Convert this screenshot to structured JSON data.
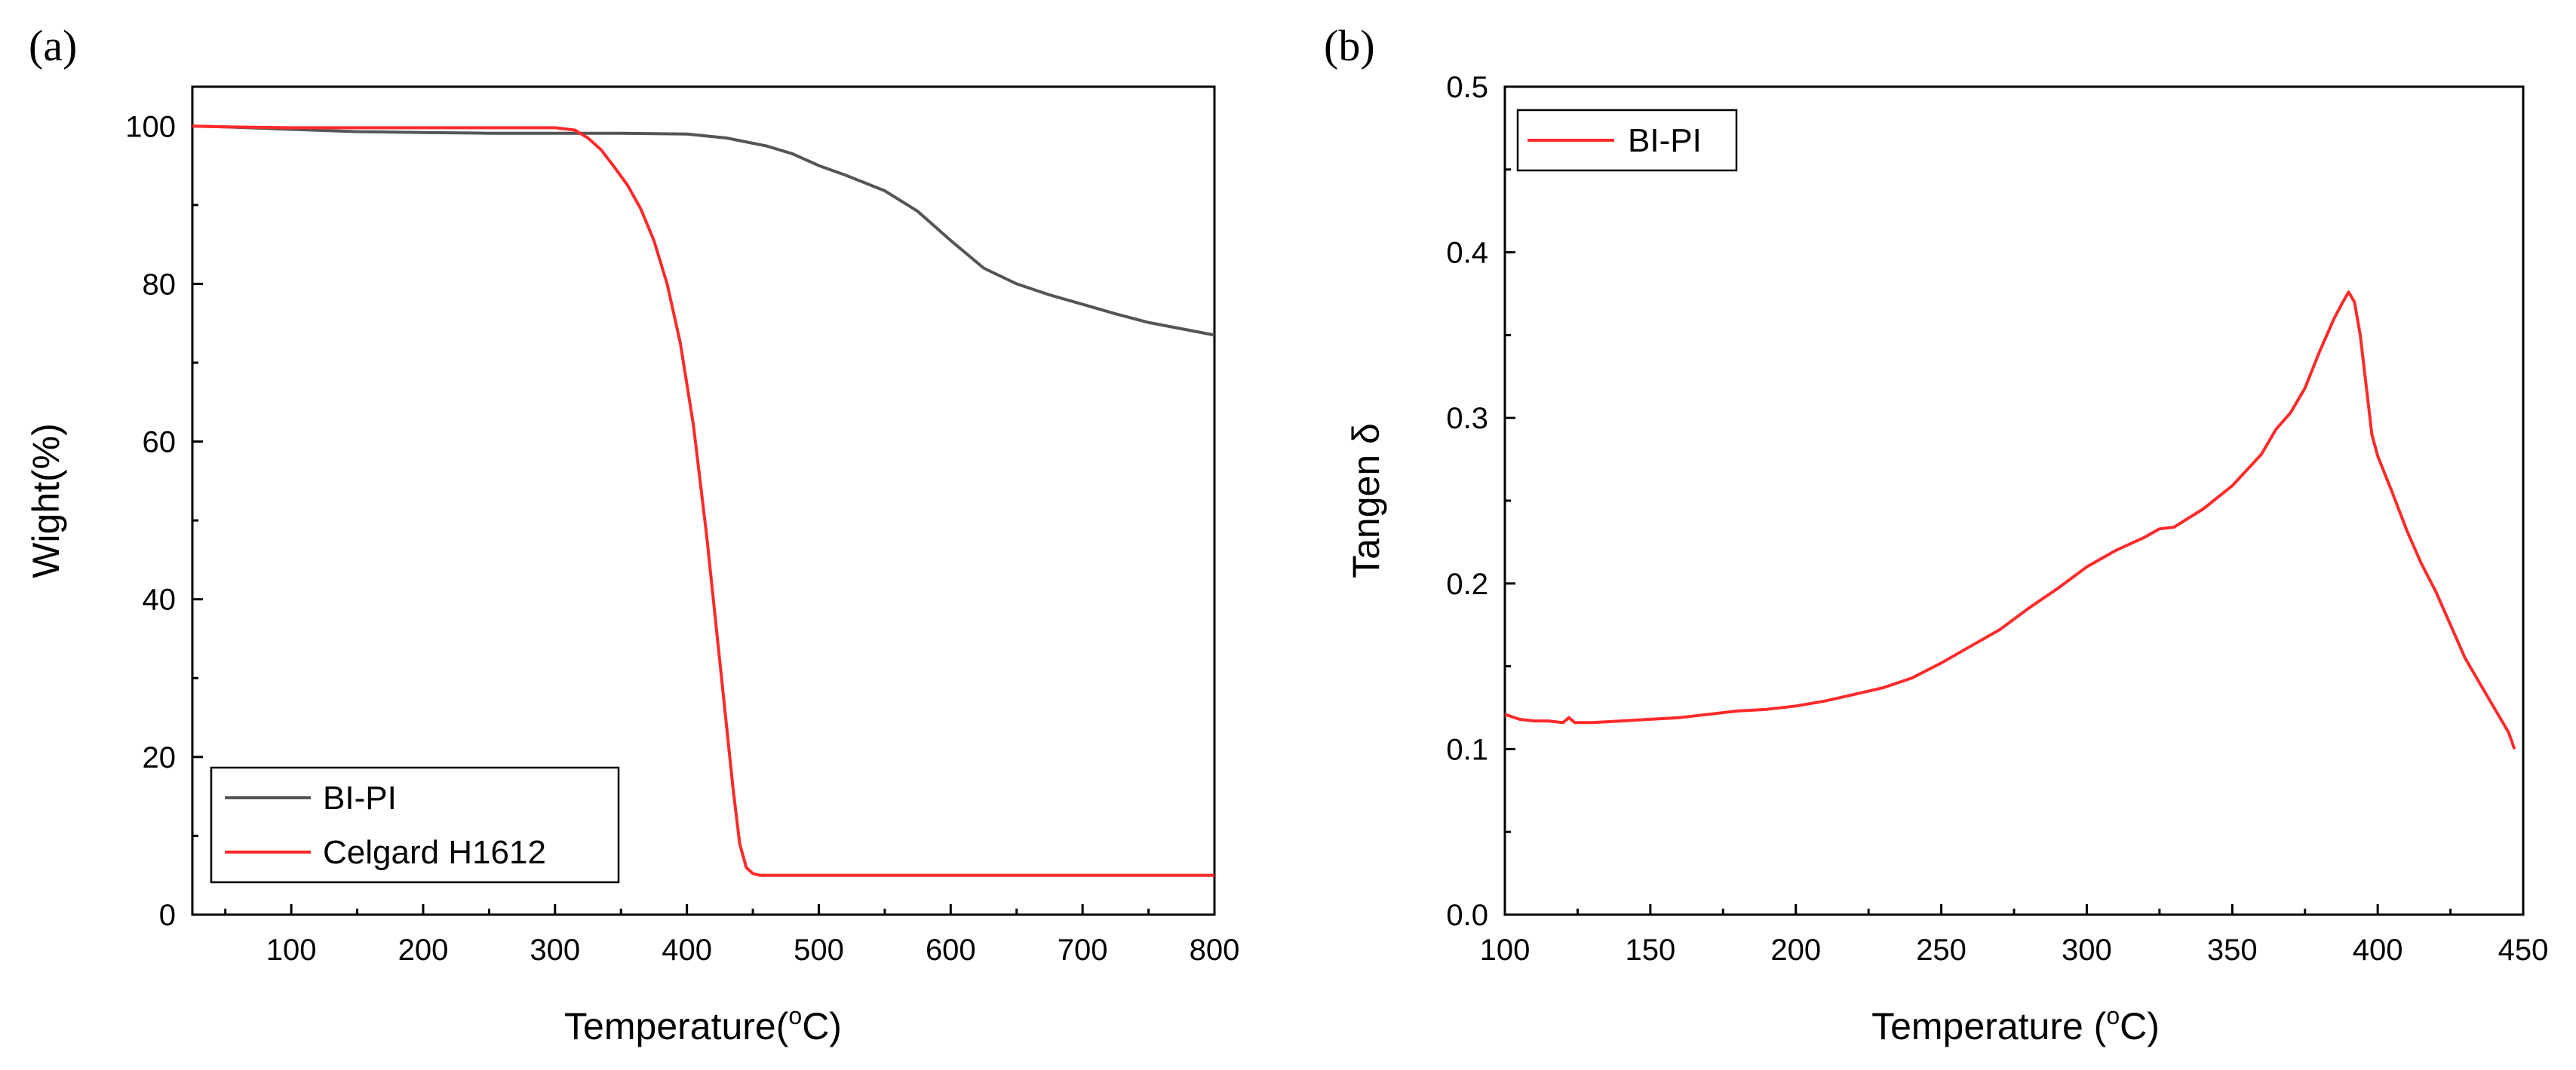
{
  "chart_data": [
    {
      "type": "line",
      "panel_label": "(a)",
      "title": "",
      "xlabel_main": "Temperature(",
      "xlabel_sup": "o",
      "xlabel_end": "C)",
      "ylabel": "Wight(%)",
      "xlim": [
        25,
        800
      ],
      "ylim": [
        0,
        105
      ],
      "xticks": [
        100,
        200,
        300,
        400,
        500,
        600,
        700,
        800
      ],
      "xtick_labels": [
        "100",
        "200",
        "300",
        "400",
        "500",
        "600",
        "700",
        "800"
      ],
      "yticks": [
        0,
        20,
        40,
        60,
        80,
        100
      ],
      "ytick_labels": [
        "0",
        "20",
        "40",
        "60",
        "80",
        "100"
      ],
      "legend_position": "bottom-left",
      "series": [
        {
          "name": "BI-PI",
          "color": "#555555",
          "x": [
            25,
            50,
            100,
            150,
            200,
            250,
            300,
            350,
            400,
            430,
            460,
            480,
            500,
            520,
            550,
            575,
            600,
            625,
            650,
            675,
            700,
            725,
            750,
            775,
            800
          ],
          "y": [
            100,
            99.9,
            99.6,
            99.3,
            99.2,
            99.1,
            99.1,
            99.1,
            99.0,
            98.5,
            97.5,
            96.5,
            95.0,
            93.8,
            91.8,
            89.2,
            85.5,
            82.0,
            80.0,
            78.6,
            77.4,
            76.2,
            75.1,
            74.3,
            73.5
          ]
        },
        {
          "name": "Celgard H1612",
          "color": "#ff2a2a",
          "x": [
            25,
            50,
            100,
            150,
            200,
            250,
            300,
            315,
            325,
            335,
            345,
            355,
            365,
            375,
            385,
            395,
            405,
            415,
            425,
            435,
            440,
            445,
            450,
            455,
            460,
            500,
            600,
            700,
            800
          ],
          "y": [
            100,
            99.9,
            99.8,
            99.8,
            99.8,
            99.8,
            99.8,
            99.5,
            98.5,
            97.0,
            94.8,
            92.5,
            89.5,
            85.5,
            80.0,
            72.5,
            62.0,
            48.0,
            32.0,
            16.0,
            9.0,
            6.0,
            5.2,
            5.0,
            5.0,
            5.0,
            5.0,
            5.0,
            5.0
          ]
        }
      ]
    },
    {
      "type": "line",
      "panel_label": "(b)",
      "title": "",
      "xlabel_main": "Temperature (",
      "xlabel_sup": "o",
      "xlabel_end": "C)",
      "ylabel": "Tangen δ",
      "xlim": [
        100,
        450
      ],
      "ylim": [
        0,
        0.5
      ],
      "xticks": [
        100,
        150,
        200,
        250,
        300,
        350,
        400,
        450
      ],
      "xtick_labels": [
        "100",
        "150",
        "200",
        "250",
        "300",
        "350",
        "400",
        "450"
      ],
      "yticks": [
        0,
        0.1,
        0.2,
        0.3,
        0.4,
        0.5
      ],
      "ytick_labels": [
        "0.0",
        "0.1",
        "0.2",
        "0.3",
        "0.4",
        "0.5"
      ],
      "legend_position": "top-left",
      "series": [
        {
          "name": "BI-PI",
          "color": "#ff2a2a",
          "x": [
            100,
            105,
            110,
            115,
            120,
            122,
            124,
            130,
            140,
            150,
            160,
            170,
            180,
            190,
            200,
            210,
            220,
            230,
            240,
            250,
            260,
            270,
            280,
            290,
            300,
            310,
            320,
            325,
            330,
            340,
            350,
            360,
            365,
            370,
            375,
            380,
            385,
            388,
            390,
            392,
            394,
            396,
            398,
            400,
            405,
            410,
            415,
            420,
            425,
            430,
            435,
            440,
            445,
            447
          ],
          "y": [
            0.121,
            0.118,
            0.117,
            0.117,
            0.116,
            0.119,
            0.116,
            0.116,
            0.117,
            0.118,
            0.119,
            0.121,
            0.123,
            0.124,
            0.126,
            0.129,
            0.133,
            0.137,
            0.143,
            0.152,
            0.162,
            0.172,
            0.185,
            0.197,
            0.21,
            0.22,
            0.228,
            0.233,
            0.234,
            0.245,
            0.259,
            0.278,
            0.293,
            0.303,
            0.318,
            0.34,
            0.36,
            0.37,
            0.376,
            0.37,
            0.35,
            0.32,
            0.29,
            0.277,
            0.255,
            0.232,
            0.212,
            0.195,
            0.175,
            0.155,
            0.14,
            0.125,
            0.11,
            0.1
          ]
        }
      ]
    }
  ]
}
